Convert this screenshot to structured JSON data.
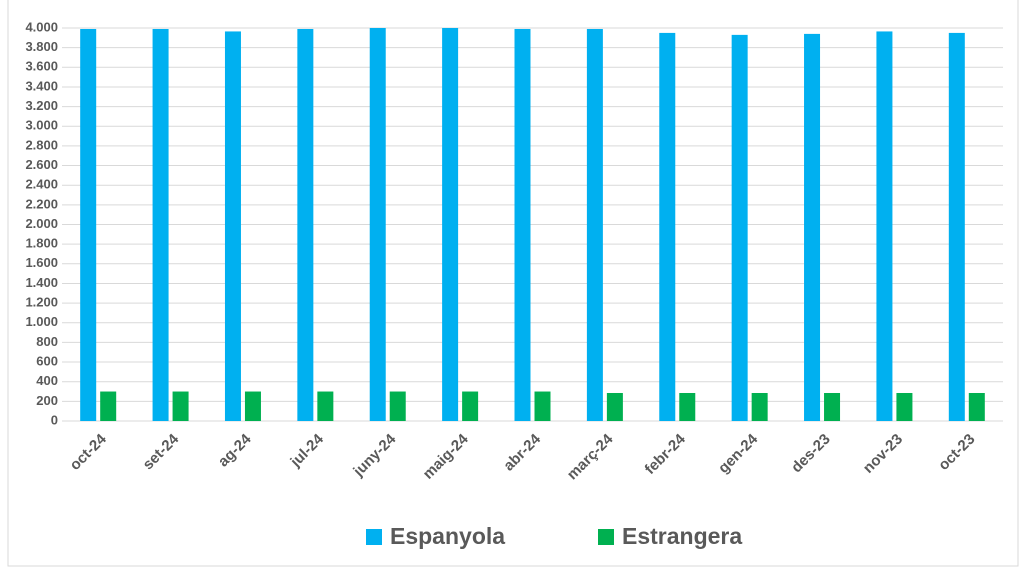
{
  "chart_data": {
    "type": "bar",
    "categories": [
      "oct-24",
      "set-24",
      "ag-24",
      "jul-24",
      "juny-24",
      "maig-24",
      "abr-24",
      "març-24",
      "febr-24",
      "gen-24",
      "des-23",
      "nov-23",
      "oct-23"
    ],
    "series": [
      {
        "name": "Espanyola",
        "color": "#00b0f0",
        "values": [
          3990,
          3990,
          3965,
          3990,
          4000,
          4000,
          3990,
          3990,
          3950,
          3930,
          3940,
          3965,
          3950
        ]
      },
      {
        "name": "Estrangera",
        "color": "#00b050",
        "values": [
          300,
          300,
          300,
          300,
          300,
          300,
          300,
          285,
          285,
          285,
          285,
          285,
          285
        ]
      }
    ],
    "ylim": [
      0,
      4000
    ],
    "yticks": [
      0,
      200,
      400,
      600,
      800,
      {
        "value": 1000,
        "label": "1.000"
      },
      {
        "value": 1200,
        "label": "1.200"
      },
      {
        "value": 1400,
        "label": "1.400"
      },
      {
        "value": 1600,
        "label": "1.600"
      },
      {
        "value": 1800,
        "label": "1.800"
      },
      {
        "value": 2000,
        "label": "2.000"
      },
      {
        "value": 2200,
        "label": "2.200"
      },
      {
        "value": 2400,
        "label": "2.400"
      },
      {
        "value": 2600,
        "label": "2.600"
      },
      {
        "value": 2800,
        "label": "2.800"
      },
      {
        "value": 3000,
        "label": "3.000"
      },
      {
        "value": 3200,
        "label": "3.200"
      },
      {
        "value": 3400,
        "label": "3.400"
      },
      {
        "value": 3600,
        "label": "3.600"
      },
      {
        "value": 3800,
        "label": "3.800"
      },
      {
        "value": 4000,
        "label": "4.000"
      }
    ],
    "grid": true,
    "legend": "bottom"
  }
}
